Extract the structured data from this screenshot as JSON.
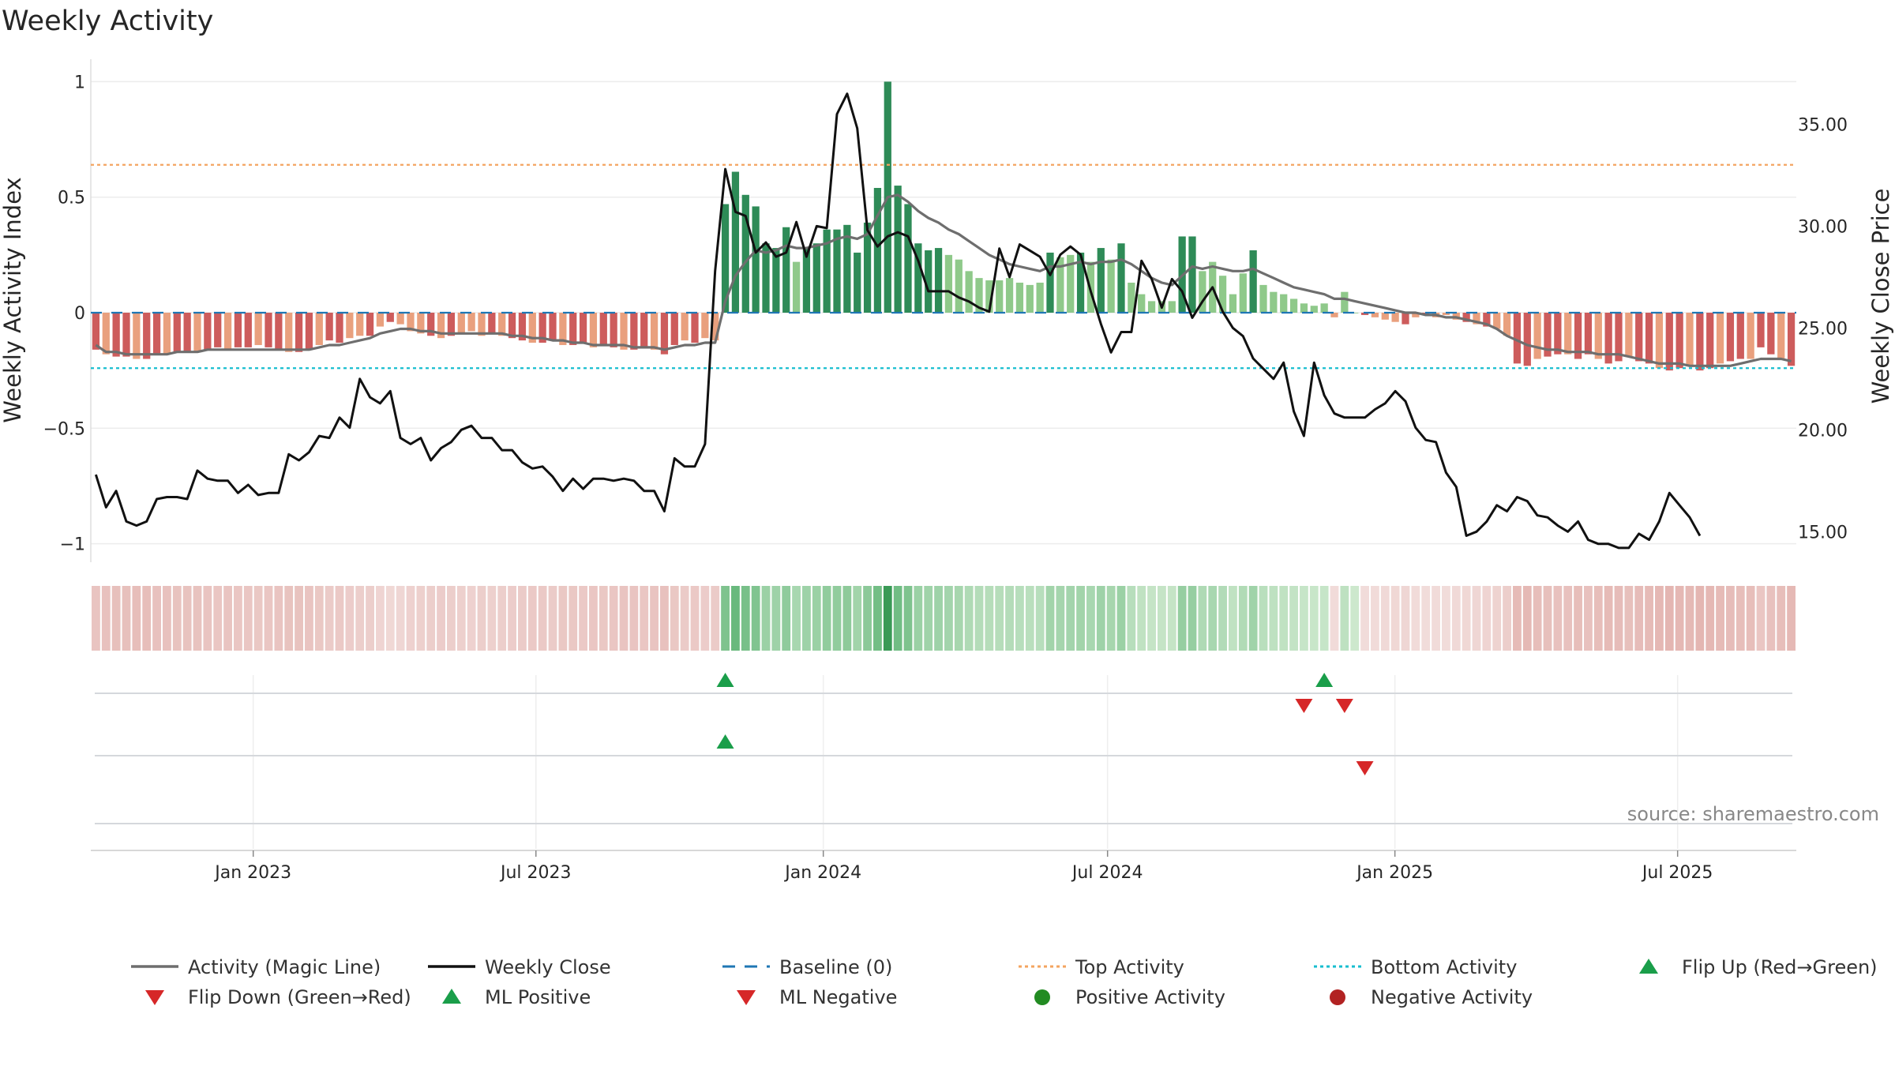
{
  "chart_data": {
    "type": "bar",
    "title": "Weekly Activity",
    "ylabel_left": "Weekly Activity Index",
    "ylabel_right": "Weekly Close Price",
    "source": "source: sharemaestro.com",
    "x_start": "2022-09-19",
    "x_end": "2025-09-15",
    "ylim_left": [
      -1.08,
      1.08
    ],
    "ylim_right": [
      13.5,
      38.0
    ],
    "yticks_left": [
      {
        "value": 1,
        "label": "1"
      },
      {
        "value": 0.5,
        "label": "0.5"
      },
      {
        "value": 0,
        "label": "0"
      },
      {
        "value": -0.5,
        "label": "−0.5"
      },
      {
        "value": -1,
        "label": "−1"
      }
    ],
    "yticks_right": [
      {
        "value": 35,
        "label": "35.00"
      },
      {
        "value": 30,
        "label": "30.00"
      },
      {
        "value": 25,
        "label": "25.00"
      },
      {
        "value": 20,
        "label": "20.00"
      },
      {
        "value": 15,
        "label": "15.00"
      }
    ],
    "xticks": [
      {
        "date": "2023-01-01",
        "label": "Jan 2023"
      },
      {
        "date": "2023-07-01",
        "label": "Jul 2023"
      },
      {
        "date": "2024-01-01",
        "label": "Jan 2024"
      },
      {
        "date": "2024-07-01",
        "label": "Jul 2024"
      },
      {
        "date": "2025-01-01",
        "label": "Jan 2025"
      },
      {
        "date": "2025-07-01",
        "label": "Jul 2025"
      }
    ],
    "top_activity": 0.64,
    "bottom_activity": -0.24,
    "activity": [
      -0.16,
      -0.18,
      -0.19,
      -0.19,
      -0.2,
      -0.2,
      -0.18,
      -0.18,
      -0.17,
      -0.17,
      -0.17,
      -0.16,
      -0.15,
      -0.16,
      -0.15,
      -0.15,
      -0.14,
      -0.15,
      -0.16,
      -0.17,
      -0.17,
      -0.16,
      -0.14,
      -0.12,
      -0.13,
      -0.11,
      -0.1,
      -0.1,
      -0.06,
      -0.04,
      -0.05,
      -0.08,
      -0.09,
      -0.1,
      -0.11,
      -0.1,
      -0.09,
      -0.08,
      -0.1,
      -0.09,
      -0.1,
      -0.11,
      -0.12,
      -0.13,
      -0.13,
      -0.12,
      -0.14,
      -0.14,
      -0.13,
      -0.15,
      -0.14,
      -0.15,
      -0.16,
      -0.16,
      -0.15,
      -0.16,
      -0.18,
      -0.14,
      -0.12,
      -0.13,
      -0.11,
      -0.12,
      0.47,
      0.61,
      0.51,
      0.46,
      0.3,
      0.28,
      0.37,
      0.22,
      0.28,
      0.3,
      0.36,
      0.36,
      0.38,
      0.26,
      0.39,
      0.54,
      1.0,
      0.55,
      0.47,
      0.3,
      0.27,
      0.28,
      0.25,
      0.23,
      0.18,
      0.15,
      0.14,
      0.14,
      0.15,
      0.13,
      0.12,
      0.13,
      0.26,
      0.24,
      0.25,
      0.26,
      0.22,
      0.28,
      0.23,
      0.3,
      0.13,
      0.08,
      0.05,
      0.05,
      0.05,
      0.33,
      0.33,
      0.18,
      0.22,
      0.16,
      0.08,
      0.17,
      0.27,
      0.12,
      0.09,
      0.08,
      0.06,
      0.04,
      0.03,
      0.04,
      -0.02,
      0.09,
      0.0,
      -0.01,
      -0.02,
      -0.03,
      -0.04,
      -0.05,
      -0.02,
      -0.01,
      -0.02,
      -0.01,
      -0.03,
      -0.04,
      -0.05,
      -0.06,
      -0.07,
      -0.1,
      -0.22,
      -0.23,
      -0.2,
      -0.19,
      -0.18,
      -0.18,
      -0.2,
      -0.18,
      -0.2,
      -0.22,
      -0.21,
      -0.19,
      -0.21,
      -0.22,
      -0.24,
      -0.25,
      -0.24,
      -0.23,
      -0.25,
      -0.24,
      -0.22,
      -0.21,
      -0.2,
      -0.2,
      -0.15,
      -0.18,
      -0.2,
      -0.23
    ],
    "magic_line": [
      -0.14,
      -0.17,
      -0.17,
      -0.18,
      -0.18,
      -0.18,
      -0.18,
      -0.18,
      -0.17,
      -0.17,
      -0.17,
      -0.16,
      -0.16,
      -0.16,
      -0.16,
      -0.16,
      -0.16,
      -0.16,
      -0.16,
      -0.16,
      -0.16,
      -0.16,
      -0.15,
      -0.14,
      -0.14,
      -0.13,
      -0.12,
      -0.11,
      -0.09,
      -0.08,
      -0.07,
      -0.07,
      -0.08,
      -0.08,
      -0.09,
      -0.09,
      -0.09,
      -0.09,
      -0.09,
      -0.09,
      -0.09,
      -0.1,
      -0.1,
      -0.11,
      -0.11,
      -0.12,
      -0.12,
      -0.13,
      -0.13,
      -0.14,
      -0.14,
      -0.14,
      -0.14,
      -0.15,
      -0.15,
      -0.15,
      -0.16,
      -0.15,
      -0.14,
      -0.14,
      -0.13,
      -0.13,
      0.05,
      0.16,
      0.22,
      0.27,
      0.26,
      0.27,
      0.29,
      0.28,
      0.28,
      0.29,
      0.3,
      0.32,
      0.33,
      0.32,
      0.34,
      0.42,
      0.5,
      0.51,
      0.48,
      0.44,
      0.41,
      0.39,
      0.36,
      0.34,
      0.31,
      0.28,
      0.25,
      0.23,
      0.21,
      0.2,
      0.19,
      0.18,
      0.2,
      0.2,
      0.21,
      0.22,
      0.21,
      0.22,
      0.22,
      0.23,
      0.21,
      0.18,
      0.15,
      0.13,
      0.12,
      0.16,
      0.2,
      0.19,
      0.2,
      0.19,
      0.18,
      0.18,
      0.19,
      0.17,
      0.15,
      0.13,
      0.11,
      0.1,
      0.09,
      0.08,
      0.06,
      0.06,
      0.05,
      0.04,
      0.03,
      0.02,
      0.01,
      0.0,
      0.0,
      -0.01,
      -0.01,
      -0.02,
      -0.02,
      -0.03,
      -0.04,
      -0.05,
      -0.07,
      -0.1,
      -0.12,
      -0.14,
      -0.15,
      -0.16,
      -0.16,
      -0.17,
      -0.17,
      -0.17,
      -0.18,
      -0.18,
      -0.18,
      -0.19,
      -0.2,
      -0.21,
      -0.22,
      -0.22,
      -0.22,
      -0.23,
      -0.23,
      -0.23,
      -0.23,
      -0.23,
      -0.22,
      -0.21,
      -0.2,
      -0.2,
      -0.2,
      -0.21
    ],
    "weekly_close": [
      17.8,
      16.2,
      17.0,
      15.5,
      15.3,
      15.5,
      16.6,
      16.7,
      16.7,
      16.6,
      18.0,
      17.6,
      17.5,
      17.5,
      16.9,
      17.3,
      16.8,
      16.9,
      16.9,
      18.8,
      18.5,
      18.9,
      19.7,
      19.6,
      20.6,
      20.1,
      22.5,
      21.6,
      21.3,
      21.9,
      19.6,
      19.3,
      19.6,
      18.5,
      19.1,
      19.4,
      20.0,
      20.2,
      19.6,
      19.6,
      19.0,
      19.0,
      18.4,
      18.1,
      18.2,
      17.7,
      17.0,
      17.6,
      17.1,
      17.6,
      17.6,
      17.5,
      17.6,
      17.5,
      17.0,
      17.0,
      16.0,
      18.6,
      18.2,
      18.2,
      19.3,
      27.8,
      32.8,
      30.7,
      30.5,
      28.7,
      29.2,
      28.5,
      28.7,
      30.2,
      28.5,
      30.0,
      29.9,
      35.5,
      36.5,
      34.8,
      29.8,
      29.0,
      29.5,
      29.7,
      29.5,
      28.3,
      26.8,
      26.8,
      26.8,
      26.5,
      26.3,
      26.0,
      25.8,
      28.9,
      27.5,
      29.1,
      28.8,
      28.5,
      27.6,
      28.6,
      29.0,
      28.6,
      26.8,
      25.2,
      23.8,
      24.8,
      24.8,
      28.3,
      27.4,
      26.0,
      27.4,
      26.8,
      25.5,
      26.3,
      27.0,
      25.8,
      25.0,
      24.6,
      23.5,
      23.0,
      22.5,
      23.3,
      20.9,
      19.7,
      23.3,
      21.7,
      20.8,
      20.6,
      20.6,
      20.6,
      21.0,
      21.3,
      21.9,
      21.4,
      20.1,
      19.5,
      19.4,
      17.9,
      17.2,
      14.8,
      15.0,
      15.5,
      16.3,
      16.0,
      16.7,
      16.5,
      15.8,
      15.7,
      15.3,
      15.0,
      15.5,
      14.6,
      14.4,
      14.4,
      14.2,
      14.2,
      14.9,
      14.6,
      15.5,
      16.9,
      16.3,
      15.7,
      14.8
    ],
    "flip_up_row1": [
      62,
      121
    ],
    "flip_down_row1": [
      119,
      123
    ],
    "ml_positive_row2": [
      62
    ],
    "ml_negative_row2": [
      125
    ],
    "legend": [
      {
        "label": "Activity (Magic Line)",
        "style": "line-grey"
      },
      {
        "label": "Weekly Close",
        "style": "line-black"
      },
      {
        "label": "Baseline (0)",
        "style": "dash-blue"
      },
      {
        "label": "Top Activity",
        "style": "dot-orange"
      },
      {
        "label": "Bottom Activity",
        "style": "dot-cyan"
      },
      {
        "label": "Flip Up (Red→Green)",
        "style": "tri-up-green"
      },
      {
        "label": "Flip Down (Green→Red)",
        "style": "tri-down-red"
      },
      {
        "label": "ML Positive",
        "style": "tri-up-green"
      },
      {
        "label": "ML Negative",
        "style": "tri-down-red"
      },
      {
        "label": "Positive Activity",
        "style": "dot-green"
      },
      {
        "label": "Negative Activity",
        "style": "dot-red"
      }
    ]
  },
  "colors": {
    "pos_dark": "#2e8b57",
    "pos_light": "#8fc98a",
    "neg_dark": "#cd5c5c",
    "neg_light": "#e9a07e",
    "magic_line": "#6e6e6e",
    "close": "#111111",
    "baseline": "#1f77b4",
    "top": "#f4a460",
    "bottom": "#17becf",
    "marker_green": "#1a9e4a",
    "marker_red": "#d62728",
    "dot_green": "#228b22",
    "dot_red": "#b22222"
  }
}
